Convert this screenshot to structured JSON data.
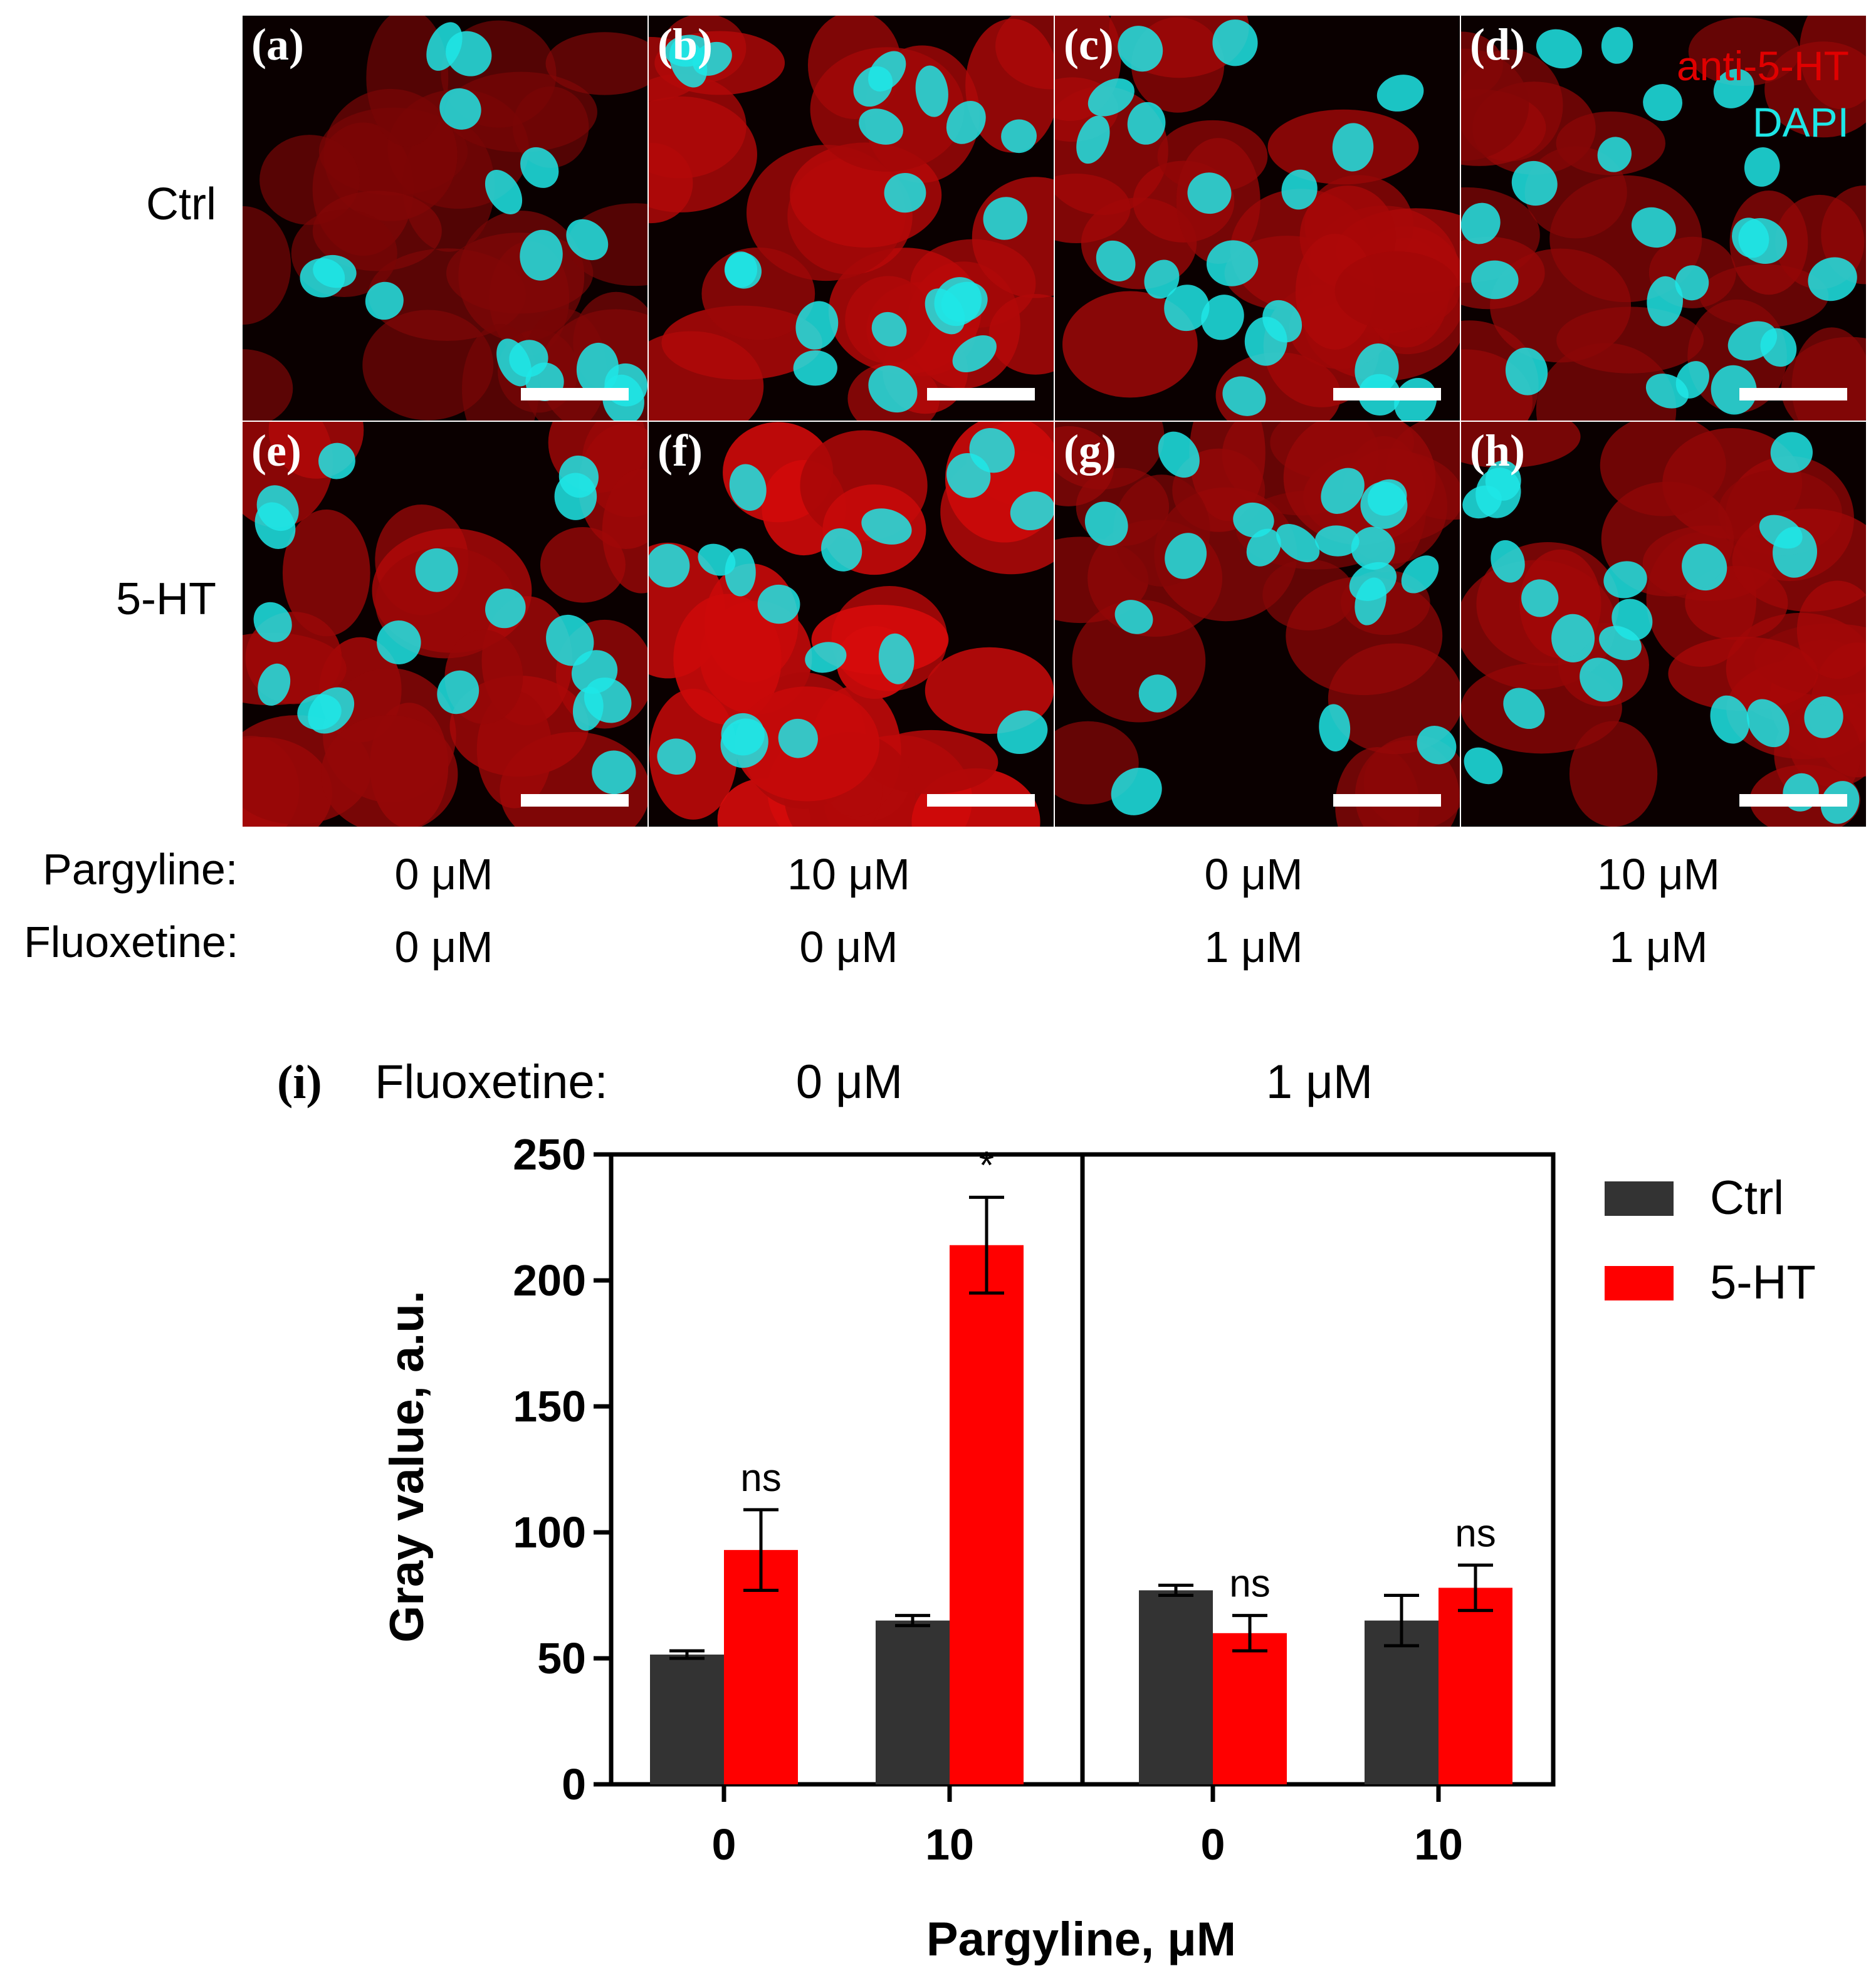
{
  "row_labels": [
    "Ctrl",
    "5-HT"
  ],
  "panels": [
    {
      "label": "(a)",
      "intensity": 0.35
    },
    {
      "label": "(b)",
      "intensity": 0.75
    },
    {
      "label": "(c)",
      "intensity": 0.65
    },
    {
      "label": "(d)",
      "intensity": 0.5
    },
    {
      "label": "(e)",
      "intensity": 0.7
    },
    {
      "label": "(f)",
      "intensity": 1.0
    },
    {
      "label": "(g)",
      "intensity": 0.5
    },
    {
      "label": "(h)",
      "intensity": 0.6
    }
  ],
  "channel_legend": {
    "red_label": "anti-5-HT",
    "cyan_label": "DAPI",
    "red_color": "#e00000",
    "cyan_color": "#1ee6e6"
  },
  "conditions": {
    "pargyline_label": "Pargyline:",
    "fluoxetine_label": "Fluoxetine:",
    "pargyline_values": [
      "0 μM",
      "10 μM",
      "0 μM",
      "10 μM"
    ],
    "fluoxetine_values": [
      "0 μM",
      "0 μM",
      "1 μM",
      "1 μM"
    ]
  },
  "chart_data": {
    "type": "bar",
    "panel_label": "(i)",
    "group_header_label": "Fluoxetine:",
    "group_headers": [
      "0 μM",
      "1 μM"
    ],
    "categories": [
      "0",
      "10",
      "0",
      "10"
    ],
    "series": [
      {
        "name": "Ctrl",
        "color": "#333333",
        "values": [
          51.5,
          65,
          77,
          65
        ],
        "errors": [
          1.5,
          2,
          2,
          10
        ]
      },
      {
        "name": "5-HT",
        "color": "#ff0000",
        "values": [
          93,
          214,
          60,
          78
        ],
        "errors": [
          16,
          19,
          7,
          9
        ]
      }
    ],
    "annotations": [
      "ns",
      "*",
      "ns",
      "ns"
    ],
    "ylim": [
      0,
      250
    ],
    "yticks": [
      0,
      50,
      100,
      150,
      200,
      250
    ],
    "xlabel": "Pargyline, μM",
    "ylabel": "Gray value, a.u."
  }
}
